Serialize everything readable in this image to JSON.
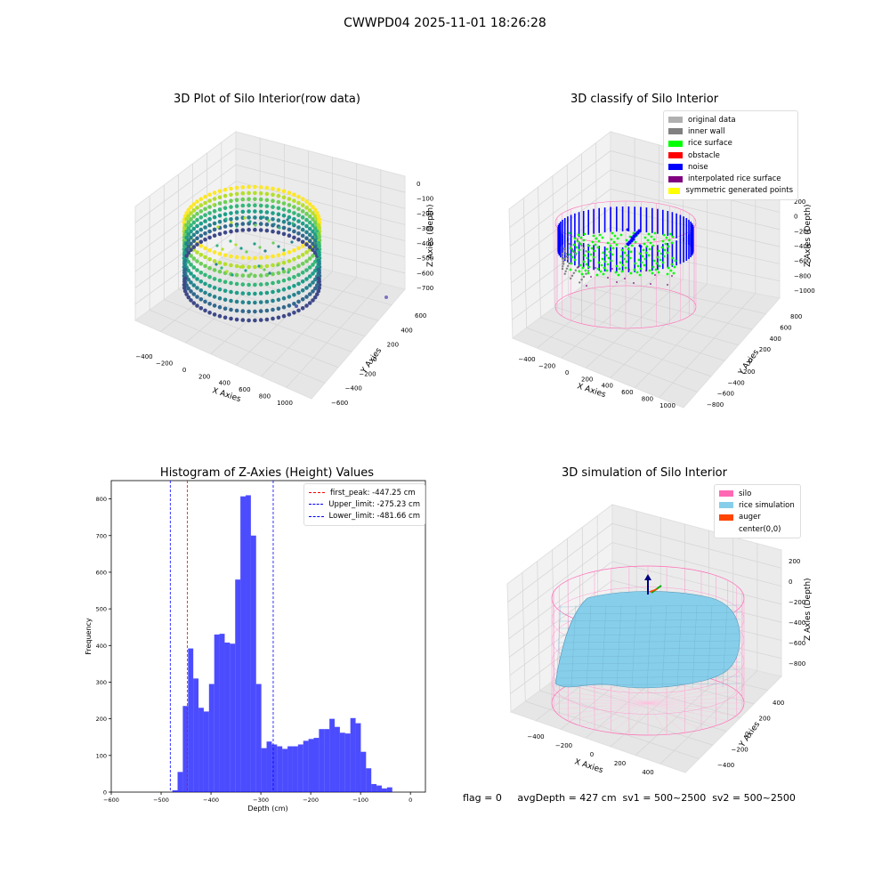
{
  "suptitle": "CWWPD04 2025-11-01 18:26:28",
  "footer": "flag = 0     avgDepth = 427 cm  sv1 = 500~2500  sv2 = 500~2500",
  "chart_data": [
    {
      "type": "scatter",
      "title": "3D Plot of Silo Interior(row data)",
      "xlabel": "X Axies",
      "ylabel": "Y Axies",
      "zlabel": "Z Axies (Depth)",
      "x_ticks": [
        "−400",
        "−200",
        "0",
        "200",
        "400",
        "600",
        "800",
        "1000"
      ],
      "y_ticks": [
        "600",
        "400",
        "200",
        "0",
        "−200",
        "−400",
        "−600"
      ],
      "z_ticks": [
        "0",
        "−100",
        "−200",
        "−300",
        "−400",
        "−500",
        "−600",
        "−700"
      ],
      "colormap": "viridis"
    },
    {
      "type": "scatter",
      "title": "3D classify of Silo Interior",
      "xlabel": "X Axies",
      "ylabel": "Y Axies",
      "zlabel": "Z Axies (Depth)",
      "x_ticks": [
        "−400",
        "−200",
        "0",
        "200",
        "400",
        "600",
        "800",
        "1000"
      ],
      "y_ticks": [
        "800",
        "600",
        "400",
        "200",
        "0",
        "−200",
        "−400",
        "−600",
        "−800"
      ],
      "z_ticks": [
        "200",
        "0",
        "−200",
        "−400",
        "−600",
        "−800",
        "−1000"
      ],
      "legend": [
        {
          "label": "original data",
          "color": "#b0b0b0"
        },
        {
          "label": "inner wall",
          "color": "#808080"
        },
        {
          "label": "rice surface",
          "color": "#00ff00"
        },
        {
          "label": "obstacle",
          "color": "#ff0000"
        },
        {
          "label": "noise",
          "color": "#0000ff"
        },
        {
          "label": "interpolated rice surface",
          "color": "#800080"
        },
        {
          "label": "symmetric generated points",
          "color": "#ffff00"
        }
      ]
    },
    {
      "type": "bar",
      "title": "Histogram of Z-Axies (Height) Values",
      "xlabel": "Depth (cm)",
      "ylabel": "Frequency",
      "xlim": [
        -600,
        30
      ],
      "ylim": [
        0,
        850
      ],
      "x_ticks": [
        -600,
        -500,
        -400,
        -300,
        -200,
        -100,
        0
      ],
      "x_tick_labels": [
        "−600",
        "−500",
        "−400",
        "−300",
        "−200",
        "−100",
        "0"
      ],
      "y_ticks": [
        0,
        100,
        200,
        300,
        400,
        500,
        600,
        700,
        800
      ],
      "bin_start": -488,
      "bin_width": 10.5,
      "values": [
        0,
        5,
        55,
        235,
        392,
        310,
        230,
        220,
        295,
        430,
        432,
        408,
        405,
        580,
        807,
        810,
        700,
        295,
        120,
        138,
        130,
        125,
        118,
        125,
        125,
        130,
        140,
        145,
        148,
        172,
        172,
        200,
        178,
        162,
        160,
        202,
        188,
        110,
        65,
        22,
        18,
        10,
        13
      ],
      "bar_color": "#0000ff",
      "legend": [
        {
          "label": "first_peak: -447.25 cm",
          "color": "#ff0000",
          "value": -447.25
        },
        {
          "label": "Upper_limit: -275.23 cm",
          "color": "#0000ff",
          "value": -275.23
        },
        {
          "label": "Lower_limit: -481.66 cm",
          "color": "#0000ff",
          "value": -481.66
        }
      ]
    },
    {
      "type": "area",
      "title": "3D simulation of Silo Interior",
      "xlabel": "X Axies",
      "ylabel": "Y Axies",
      "zlabel": "Z Axies (Depth)",
      "x_ticks": [
        "−400",
        "−200",
        "0",
        "200",
        "400"
      ],
      "y_ticks": [
        "400",
        "200",
        "0",
        "−200",
        "−400"
      ],
      "z_ticks": [
        "200",
        "0",
        "−200",
        "−400",
        "−600",
        "−800"
      ],
      "legend": [
        {
          "label": "silo",
          "color": "#ff69b4"
        },
        {
          "label": "rice simulation",
          "color": "#87ceeb"
        },
        {
          "label": "auger",
          "color": "#ff4500"
        },
        {
          "label": "center(0,0)",
          "color": "#ffffff"
        }
      ]
    }
  ]
}
